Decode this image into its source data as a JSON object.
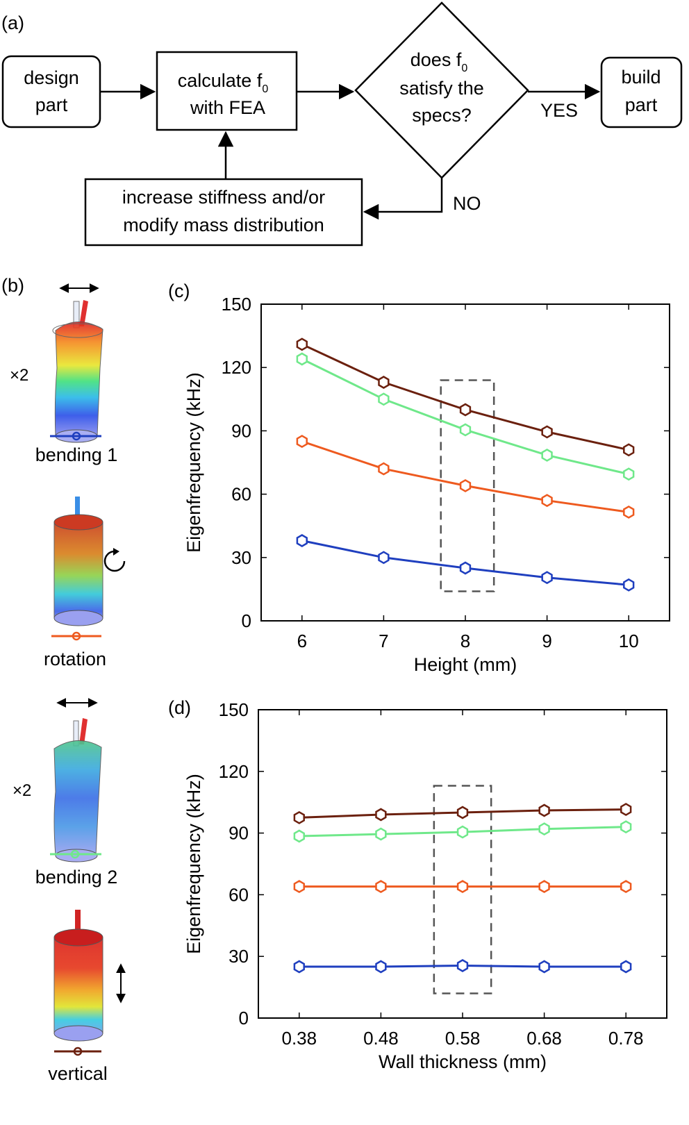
{
  "panel_labels": {
    "a": "(a)",
    "b": "(b)",
    "c": "(c)",
    "d": "(d)"
  },
  "flowchart": {
    "design": [
      "design",
      "part"
    ],
    "calculate": {
      "line1": "calculate f",
      "line1_sub": "0",
      "line2": "with FEA"
    },
    "decision": {
      "line1": "does f",
      "line1_sub": "0",
      "line2": "satisfy the",
      "line3": "specs?"
    },
    "build": [
      "build",
      "part"
    ],
    "yes_label": "YES",
    "no_label": "NO",
    "modify": [
      "increase stiffness and/or",
      "modify mass distribution"
    ]
  },
  "modes": [
    {
      "name": "bending 1",
      "multiplier": "×2",
      "color": "#1f3fbf",
      "arrow": "horizontal"
    },
    {
      "name": "rotation",
      "multiplier": "",
      "color": "#ee5a1f",
      "arrow": "rotation"
    },
    {
      "name": "bending 2",
      "multiplier": "×2",
      "color": "#6fe88a",
      "arrow": "horizontal"
    },
    {
      "name": "vertical",
      "multiplier": "",
      "color": "#6b200e",
      "arrow": "vertical"
    }
  ],
  "chart_data": [
    {
      "id": "c",
      "type": "line",
      "xlabel": "Height (mm)",
      "ylabel": "Eigenfrequency (kHz)",
      "x": [
        6,
        7,
        8,
        9,
        10
      ],
      "xticks": [
        "6",
        "7",
        "8",
        "9",
        "10"
      ],
      "xlim": [
        5.5,
        10.5
      ],
      "ylim": [
        0,
        150
      ],
      "yticks": [
        "0",
        "30",
        "60",
        "90",
        "120",
        "150"
      ],
      "highlight_x": [
        7.7,
        8.35
      ],
      "highlight_y": [
        14,
        114
      ],
      "series": [
        {
          "name": "bending 1",
          "color": "#1f3fbf",
          "values": [
            38,
            30,
            25,
            20.5,
            17
          ]
        },
        {
          "name": "rotation",
          "color": "#ee5a1f",
          "values": [
            85,
            72,
            64,
            57,
            51.5
          ]
        },
        {
          "name": "bending 2",
          "color": "#6fe88a",
          "values": [
            124,
            105,
            90.5,
            78.5,
            69.5
          ]
        },
        {
          "name": "vertical",
          "color": "#6b200e",
          "values": [
            131,
            113,
            100,
            89.5,
            81
          ]
        }
      ]
    },
    {
      "id": "d",
      "type": "line",
      "xlabel": "Wall thickness (mm)",
      "ylabel": "Eigenfrequency (kHz)",
      "x": [
        0.38,
        0.48,
        0.58,
        0.68,
        0.78
      ],
      "xticks": [
        "0.38",
        "0.48",
        "0.58",
        "0.68",
        "0.78"
      ],
      "xlim": [
        0.33,
        0.83
      ],
      "ylim": [
        0,
        150
      ],
      "yticks": [
        "0",
        "30",
        "60",
        "90",
        "120",
        "150"
      ],
      "highlight_x": [
        0.545,
        0.615
      ],
      "highlight_y": [
        12,
        113
      ],
      "series": [
        {
          "name": "bending 1",
          "color": "#1f3fbf",
          "values": [
            25,
            25,
            25.5,
            25,
            25
          ]
        },
        {
          "name": "rotation",
          "color": "#ee5a1f",
          "values": [
            64,
            64,
            64,
            64,
            64
          ]
        },
        {
          "name": "bending 2",
          "color": "#6fe88a",
          "values": [
            88.5,
            89.5,
            90.5,
            92,
            93
          ]
        },
        {
          "name": "vertical",
          "color": "#6b200e",
          "values": [
            97.5,
            99,
            100,
            101,
            101.5
          ]
        }
      ]
    }
  ]
}
